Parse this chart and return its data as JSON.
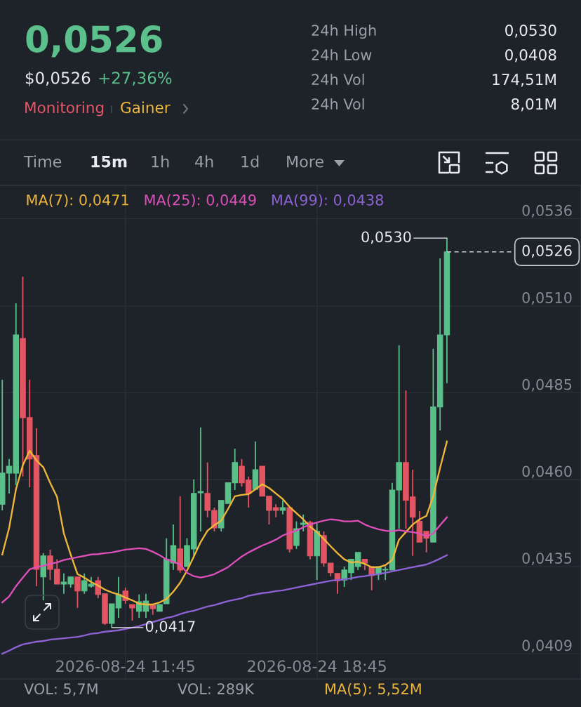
{
  "chart_data": {
    "type": "candlestick",
    "title": "0,0526",
    "x": [
      "2026-08-24T07:15",
      "2026-08-24T07:30",
      "2026-08-24T07:45",
      "2026-08-24T08:00",
      "2026-08-24T08:15",
      "2026-08-24T08:30",
      "2026-08-24T08:45",
      "2026-08-24T09:00",
      "2026-08-24T09:15",
      "2026-08-24T09:30",
      "2026-08-24T09:45",
      "2026-08-24T10:00",
      "2026-08-24T10:15",
      "2026-08-24T10:30",
      "2026-08-24T10:45",
      "2026-08-24T11:00",
      "2026-08-24T11:15",
      "2026-08-24T11:30",
      "2026-08-24T11:45",
      "2026-08-24T12:00",
      "2026-08-24T12:15",
      "2026-08-24T12:30",
      "2026-08-24T12:45",
      "2026-08-24T13:00",
      "2026-08-24T13:15",
      "2026-08-24T13:30",
      "2026-08-24T13:45",
      "2026-08-24T14:00",
      "2026-08-24T14:15",
      "2026-08-24T14:30",
      "2026-08-24T14:45",
      "2026-08-24T15:00",
      "2026-08-24T15:15",
      "2026-08-24T15:30",
      "2026-08-24T15:45",
      "2026-08-24T16:00",
      "2026-08-24T16:15",
      "2026-08-24T16:30",
      "2026-08-24T16:45",
      "2026-08-24T17:00",
      "2026-08-24T17:15",
      "2026-08-24T17:30",
      "2026-08-24T17:45",
      "2026-08-24T18:00",
      "2026-08-24T18:15",
      "2026-08-24T18:30",
      "2026-08-24T18:45",
      "2026-08-24T19:00",
      "2026-08-24T19:15",
      "2026-08-24T19:30",
      "2026-08-24T19:45",
      "2026-08-24T20:00",
      "2026-08-24T20:15",
      "2026-08-24T20:30",
      "2026-08-24T20:45",
      "2026-08-24T21:00",
      "2026-08-24T21:15",
      "2026-08-24T21:30",
      "2026-08-24T21:45",
      "2026-08-24T22:00",
      "2026-08-24T22:15",
      "2026-08-24T22:30",
      "2026-08-24T22:45",
      "2026-08-24T23:00",
      "2026-08-24T23:15",
      "2026-08-24T23:30"
    ],
    "ohlc": [
      [
        0.04528,
        0.04889,
        0.0451,
        0.04618
      ],
      [
        0.04618,
        0.04659,
        0.04559,
        0.04638
      ],
      [
        0.04618,
        0.05111,
        0.04583,
        0.05019
      ],
      [
        0.05009,
        0.05188,
        0.04608,
        0.04779
      ],
      [
        0.04779,
        0.04889,
        0.04577,
        0.04659
      ],
      [
        0.04669,
        0.04748,
        0.0429,
        0.04339
      ],
      [
        0.04317,
        0.04386,
        0.04249,
        0.04378
      ],
      [
        0.04378,
        0.04396,
        0.04308,
        0.04339
      ],
      [
        0.04339,
        0.04368,
        0.04296,
        0.04296
      ],
      [
        0.04296,
        0.04327,
        0.04268,
        0.04302
      ],
      [
        0.04296,
        0.04317,
        0.04286,
        0.04317
      ],
      [
        0.04317,
        0.04317,
        0.04227,
        0.04276
      ],
      [
        0.04276,
        0.04327,
        0.04268,
        0.04306
      ],
      [
        0.0429,
        0.04317,
        0.04286,
        0.04296
      ],
      [
        0.04306,
        0.04317,
        0.04255,
        0.04266
      ],
      [
        0.04268,
        0.04268,
        0.04178,
        0.04182
      ],
      [
        0.04182,
        0.04239,
        0.0417,
        0.04239
      ],
      [
        0.04227,
        0.04317,
        0.04198,
        0.04266
      ],
      [
        0.04276,
        0.04286,
        0.04239,
        0.04249
      ],
      [
        0.04237,
        0.04237,
        0.0419,
        0.04227
      ],
      [
        0.04217,
        0.04266,
        0.04198,
        0.04245
      ],
      [
        0.04217,
        0.04268,
        0.04198,
        0.04247
      ],
      [
        0.04235,
        0.04235,
        0.04207,
        0.04225
      ],
      [
        0.04217,
        0.04237,
        0.04217,
        0.04237
      ],
      [
        0.04239,
        0.04429,
        0.04239,
        0.04368
      ],
      [
        0.04357,
        0.04469,
        0.04337,
        0.04408
      ],
      [
        0.04398,
        0.04551,
        0.04329,
        0.04337
      ],
      [
        0.04347,
        0.04429,
        0.04347,
        0.04408
      ],
      [
        0.04398,
        0.046,
        0.04378,
        0.04559
      ],
      [
        0.04561,
        0.04751,
        0.04449,
        0.04565
      ],
      [
        0.04559,
        0.04649,
        0.0449,
        0.0451
      ],
      [
        0.0451,
        0.04518,
        0.04449,
        0.04459
      ],
      [
        0.04459,
        0.04539,
        0.04449,
        0.04539
      ],
      [
        0.0453,
        0.0459,
        0.0453,
        0.0459
      ],
      [
        0.0459,
        0.04689,
        0.04569,
        0.04649
      ],
      [
        0.04638,
        0.04659,
        0.04579,
        0.0459
      ],
      [
        0.04598,
        0.04608,
        0.04518,
        0.04559
      ],
      [
        0.04571,
        0.0471,
        0.04571,
        0.04628
      ],
      [
        0.04638,
        0.04638,
        0.04551,
        0.04551
      ],
      [
        0.04551,
        0.04551,
        0.04469,
        0.0451
      ],
      [
        0.04518,
        0.04528,
        0.0449,
        0.0451
      ],
      [
        0.0451,
        0.04539,
        0.04498,
        0.04518
      ],
      [
        0.04518,
        0.04518,
        0.04388,
        0.04398
      ],
      [
        0.04408,
        0.04478,
        0.04398,
        0.04457
      ],
      [
        0.04469,
        0.04498,
        0.04449,
        0.04473
      ],
      [
        0.04475,
        0.0448,
        0.04368,
        0.04378
      ],
      [
        0.04378,
        0.04473,
        0.04308,
        0.04449
      ],
      [
        0.04437,
        0.04449,
        0.04347,
        0.04357
      ],
      [
        0.04357,
        0.04357,
        0.04319,
        0.04329
      ],
      [
        0.04327,
        0.04327,
        0.04268,
        0.04306
      ],
      [
        0.04308,
        0.04347,
        0.04288,
        0.04337
      ],
      [
        0.04329,
        0.04368,
        0.04308,
        0.04368
      ],
      [
        0.04347,
        0.04388,
        0.04337,
        0.04388
      ],
      [
        0.04368,
        0.04368,
        0.04337,
        0.04357
      ],
      [
        0.04347,
        0.04347,
        0.04278,
        0.04321
      ],
      [
        0.04325,
        0.04347,
        0.04308,
        0.04347
      ],
      [
        0.04337,
        0.04347,
        0.04308,
        0.04339
      ],
      [
        0.04337,
        0.0459,
        0.04337,
        0.04569
      ],
      [
        0.04569,
        0.04989,
        0.04457,
        0.04649
      ],
      [
        0.04649,
        0.04858,
        0.04457,
        0.04539
      ],
      [
        0.04549,
        0.04628,
        0.04378,
        0.0449
      ],
      [
        0.04478,
        0.04508,
        0.04418,
        0.04418
      ],
      [
        0.04449,
        0.04449,
        0.04388,
        0.04429
      ],
      [
        0.04418,
        0.04979,
        0.04418,
        0.0481
      ],
      [
        0.0481,
        0.05241,
        0.04742,
        0.05019
      ],
      [
        0.05019,
        0.053,
        0.04879,
        0.0526
      ]
    ],
    "colors": [
      "#5ac08a",
      "#5ac08a",
      "#5ac08a",
      "#e35563",
      "#e35563",
      "#e35563",
      "#5ac08a",
      "#e35563",
      "#e35563",
      "#5ac08a",
      "#5ac08a",
      "#e35563",
      "#5ac08a",
      "#5ac08a",
      "#e35563",
      "#e35563",
      "#5ac08a",
      "#5ac08a",
      "#e35563",
      "#e35563",
      "#5ac08a",
      "#5ac08a",
      "#e35563",
      "#5ac08a",
      "#5ac08a",
      "#5ac08a",
      "#e35563",
      "#5ac08a",
      "#5ac08a",
      "#5ac08a",
      "#e35563",
      "#e35563",
      "#5ac08a",
      "#5ac08a",
      "#5ac08a",
      "#e35563",
      "#e35563",
      "#5ac08a",
      "#e35563",
      "#e35563",
      "#e35563",
      "#5ac08a",
      "#e35563",
      "#5ac08a",
      "#5ac08a",
      "#e35563",
      "#5ac08a",
      "#e35563",
      "#e35563",
      "#e35563",
      "#5ac08a",
      "#5ac08a",
      "#5ac08a",
      "#e35563",
      "#e35563",
      "#5ac08a",
      "#5ac08a",
      "#5ac08a",
      "#5ac08a",
      "#e35563",
      "#e35563",
      "#e35563",
      "#e35563",
      "#5ac08a",
      "#5ac08a",
      "#5ac08a"
    ],
    "series": [
      {
        "name": "MA(7): 0,0471",
        "type": "line",
        "color": "#eeb63a",
        "values": [
          0.04382,
          0.04459,
          0.04571,
          0.04641,
          0.04683,
          0.04655,
          0.04635,
          0.0459,
          0.04549,
          0.04443,
          0.04382,
          0.04325,
          0.04315,
          0.04302,
          0.04292,
          0.0428,
          0.04272,
          0.04266,
          0.04257,
          0.04249,
          0.04239,
          0.04237,
          0.04237,
          0.04243,
          0.04253,
          0.04274,
          0.043,
          0.04335,
          0.04376,
          0.04418,
          0.04451,
          0.04467,
          0.0448,
          0.04514,
          0.04551,
          0.04555,
          0.04557,
          0.04571,
          0.04586,
          0.04575,
          0.04559,
          0.04543,
          0.0452,
          0.04502,
          0.04484,
          0.04463,
          0.04447,
          0.04427,
          0.04406,
          0.04386,
          0.04368,
          0.04359,
          0.04361,
          0.04355,
          0.04345,
          0.04345,
          0.04351,
          0.04366,
          0.04425,
          0.04447,
          0.04469,
          0.04484,
          0.04494,
          0.04551,
          0.04633,
          0.0471
        ]
      },
      {
        "name": "MA(25): 0,0449",
        "type": "line",
        "color": "#dd4fb9",
        "values": [
          0.04243,
          0.0426,
          0.0429,
          0.04315,
          0.04339,
          0.04345,
          0.04349,
          0.04355,
          0.04359,
          0.04366,
          0.0437,
          0.04374,
          0.04378,
          0.04382,
          0.04383,
          0.04386,
          0.04388,
          0.04392,
          0.04396,
          0.04398,
          0.044,
          0.04398,
          0.0439,
          0.0438,
          0.04368,
          0.04361,
          0.04353,
          0.04329,
          0.04319,
          0.04315,
          0.04319,
          0.04325,
          0.04335,
          0.04345,
          0.04361,
          0.04376,
          0.04388,
          0.04398,
          0.04408,
          0.04416,
          0.04425,
          0.04437,
          0.04445,
          0.04451,
          0.04461,
          0.04469,
          0.04475,
          0.0448,
          0.04484,
          0.04482,
          0.04478,
          0.04478,
          0.0448,
          0.04469,
          0.04461,
          0.04455,
          0.04451,
          0.04449,
          0.04453,
          0.04449,
          0.04447,
          0.04443,
          0.04435,
          0.04443,
          0.04467,
          0.0449
        ]
      },
      {
        "name": "MA(99): 0,0438",
        "type": "line",
        "color": "#8c62d4",
        "values": [
          0.04094,
          0.04103,
          0.04113,
          0.04121,
          0.04125,
          0.04129,
          0.04131,
          0.04135,
          0.04137,
          0.04139,
          0.04141,
          0.04143,
          0.04147,
          0.04152,
          0.04154,
          0.04158,
          0.0416,
          0.04162,
          0.04166,
          0.0417,
          0.04174,
          0.0418,
          0.04186,
          0.04192,
          0.04198,
          0.04202,
          0.04209,
          0.04215,
          0.04219,
          0.04225,
          0.04231,
          0.04235,
          0.04241,
          0.04247,
          0.04251,
          0.04255,
          0.04262,
          0.04266,
          0.0427,
          0.04272,
          0.04276,
          0.04278,
          0.04282,
          0.04286,
          0.0429,
          0.04294,
          0.04298,
          0.04302,
          0.04306,
          0.04308,
          0.0431,
          0.04313,
          0.04317,
          0.04319,
          0.04323,
          0.04325,
          0.04329,
          0.04333,
          0.04337,
          0.04341,
          0.04345,
          0.04349,
          0.04353,
          0.04361,
          0.0437,
          0.0438
        ]
      }
    ],
    "xlim": [
      "2026-08-24T07:10",
      "2026-08-25T04:24"
    ],
    "xticks": [
      {
        "value": "2026-08-24T11:45",
        "label": "2026-08-24 11:45"
      },
      {
        "value": "2026-08-24T18:45",
        "label": "2026-08-24 18:45"
      }
    ],
    "ylim": [
      0.04021,
      0.05453
    ],
    "yticks": [
      {
        "value": 0.05356,
        "label": "0,0536"
      },
      {
        "value": 0.05103,
        "label": "0,0510"
      },
      {
        "value": 0.04851,
        "label": "0,0485"
      },
      {
        "value": 0.04599,
        "label": "0,0460"
      },
      {
        "value": 0.04347,
        "label": "0,0435"
      },
      {
        "value": 0.04094,
        "label": "0,0409"
      }
    ],
    "grid": true,
    "legend": "top left",
    "ref_lines": [
      {
        "axis": "y",
        "value": 0.0526,
        "label": "0,0526",
        "color": "#c9ccd1",
        "line_style": "dashed"
      }
    ],
    "annotations": [
      "$0,0526",
      "+27,36%",
      "Monitoring",
      "Gainer",
      "24h High",
      "0,0530",
      "24h Low",
      "0,0408",
      "24h Vol",
      "174,51M",
      "24h Vol",
      "8,01M",
      "Time",
      "15m",
      "1h",
      "4h",
      "1d",
      "More",
      {
        "text": "0,0530",
        "x": "2026-08-24T23:30",
        "y": 0.053
      },
      {
        "text": "0,0417",
        "x": "2026-08-24T11:15",
        "y": 0.0417
      },
      "VOL: 5,7M",
      "VOL: 289K",
      "MA(5): 5,52M"
    ]
  }
}
